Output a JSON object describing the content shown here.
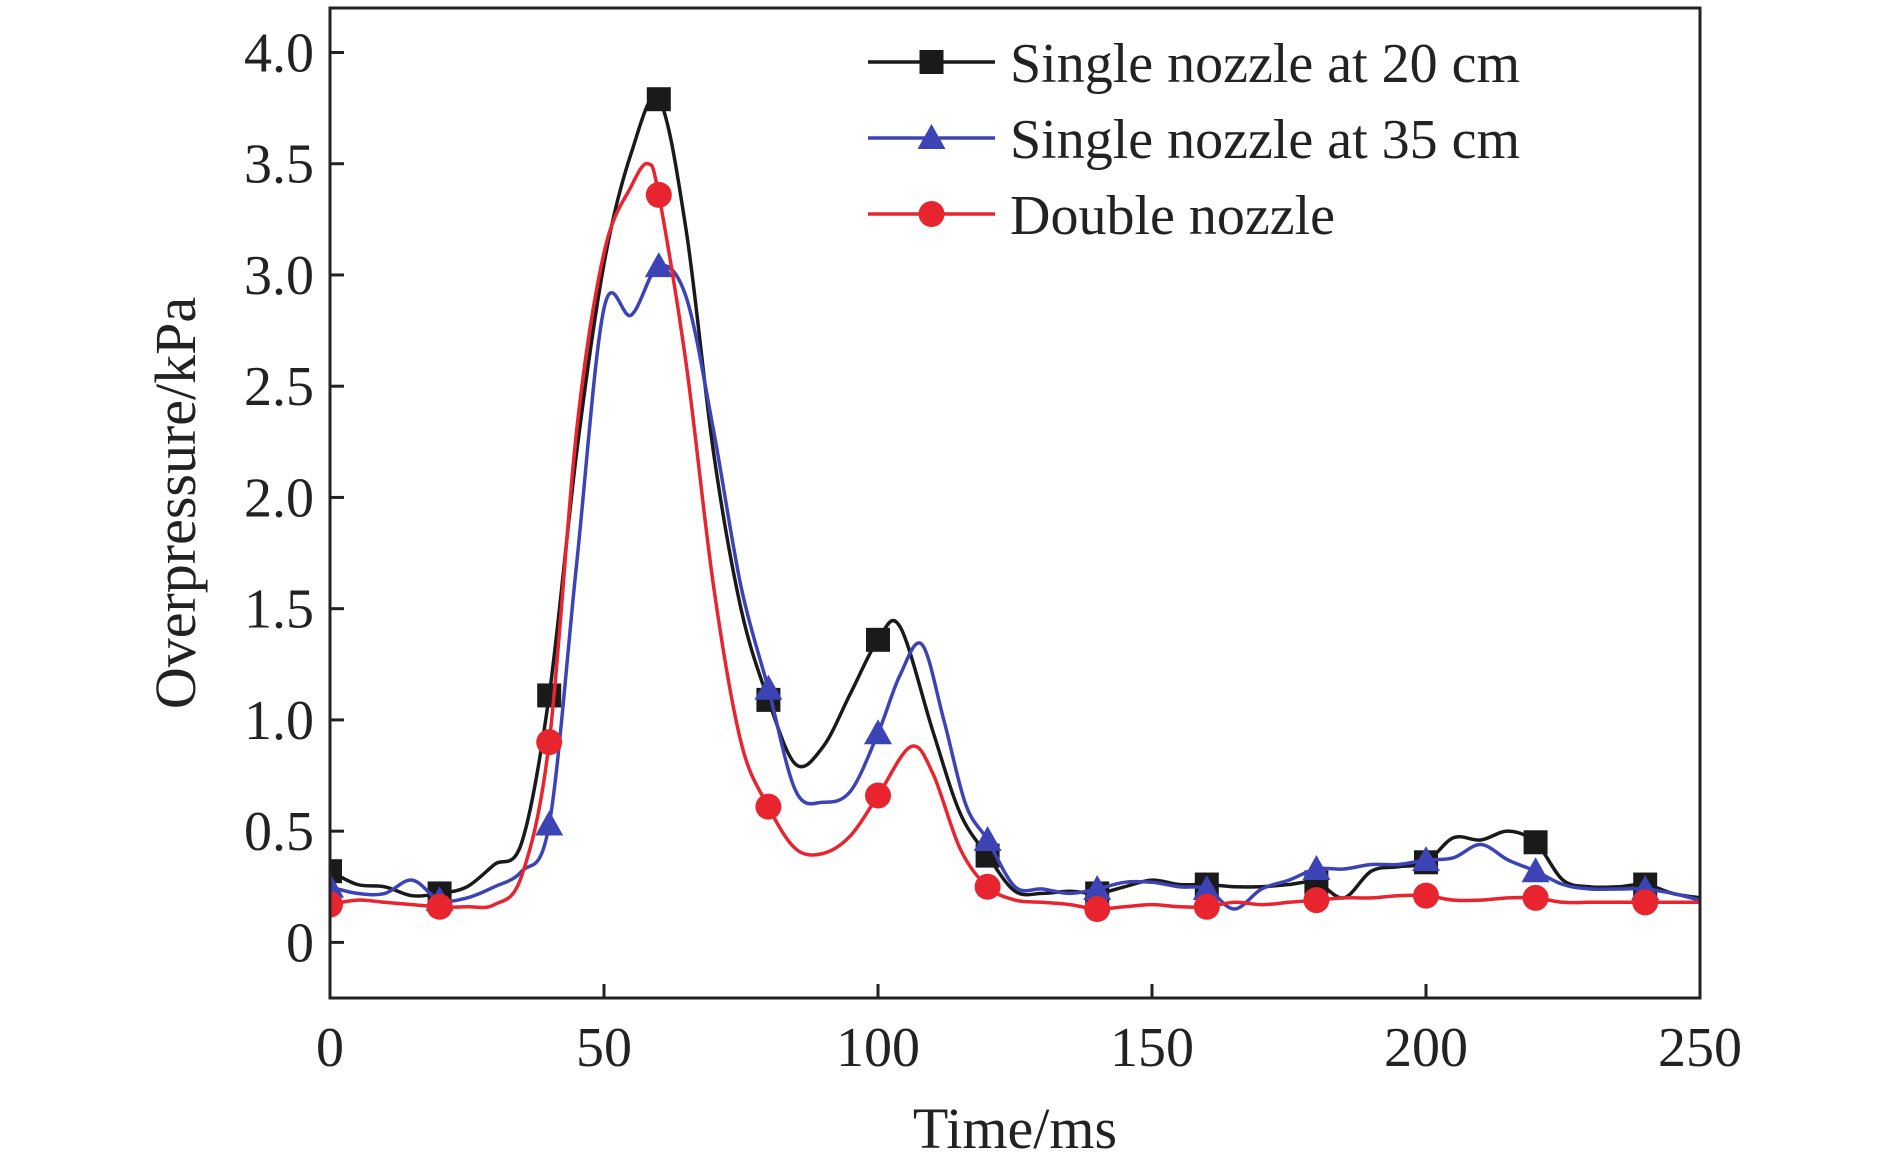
{
  "chart_data": {
    "type": "line",
    "title": "",
    "xlabel": "Time/ms",
    "ylabel": "Overpressure/kPa",
    "xlim": [
      0,
      250
    ],
    "ylim": [
      -0.25,
      4.2
    ],
    "xticks": [
      0,
      50,
      100,
      150,
      200,
      250
    ],
    "yticks": [
      0,
      0.5,
      1.0,
      1.5,
      2.0,
      2.5,
      3.0,
      3.5,
      4.0
    ],
    "xtick_labels": [
      "0",
      "50",
      "100",
      "150",
      "200",
      "250"
    ],
    "ytick_labels": [
      "0",
      "0.5",
      "1.0",
      "1.5",
      "2.0",
      "2.5",
      "3.0",
      "3.5",
      "4.0"
    ],
    "grid": false,
    "legend_position": "top-right",
    "series": [
      {
        "name": "Single nozzle at 20 cm",
        "color": "#1a1a1a",
        "marker": "square",
        "markers": [
          [
            0,
            0.32
          ],
          [
            20,
            0.22
          ],
          [
            40,
            1.11
          ],
          [
            60,
            3.79
          ],
          [
            80,
            1.09
          ],
          [
            100,
            1.36
          ],
          [
            120,
            0.39
          ],
          [
            140,
            0.22
          ],
          [
            160,
            0.26
          ],
          [
            180,
            0.27
          ],
          [
            200,
            0.36
          ],
          [
            220,
            0.45
          ],
          [
            240,
            0.26
          ]
        ],
        "curve": [
          [
            0,
            0.32
          ],
          [
            5,
            0.26
          ],
          [
            10,
            0.25
          ],
          [
            15,
            0.21
          ],
          [
            20,
            0.22
          ],
          [
            25,
            0.25
          ],
          [
            30,
            0.35
          ],
          [
            35,
            0.45
          ],
          [
            40,
            1.11
          ],
          [
            45,
            2.2
          ],
          [
            50,
            3.05
          ],
          [
            55,
            3.55
          ],
          [
            60,
            3.79
          ],
          [
            65,
            3.2
          ],
          [
            70,
            2.2
          ],
          [
            75,
            1.5
          ],
          [
            80,
            1.09
          ],
          [
            85,
            0.8
          ],
          [
            90,
            0.88
          ],
          [
            95,
            1.12
          ],
          [
            100,
            1.36
          ],
          [
            104,
            1.42
          ],
          [
            110,
            0.95
          ],
          [
            115,
            0.58
          ],
          [
            120,
            0.39
          ],
          [
            125,
            0.23
          ],
          [
            130,
            0.22
          ],
          [
            135,
            0.23
          ],
          [
            140,
            0.22
          ],
          [
            145,
            0.25
          ],
          [
            150,
            0.28
          ],
          [
            155,
            0.26
          ],
          [
            160,
            0.26
          ],
          [
            165,
            0.25
          ],
          [
            170,
            0.25
          ],
          [
            175,
            0.26
          ],
          [
            180,
            0.27
          ],
          [
            185,
            0.2
          ],
          [
            190,
            0.32
          ],
          [
            195,
            0.34
          ],
          [
            200,
            0.36
          ],
          [
            205,
            0.47
          ],
          [
            210,
            0.46
          ],
          [
            215,
            0.5
          ],
          [
            220,
            0.45
          ],
          [
            225,
            0.28
          ],
          [
            230,
            0.25
          ],
          [
            235,
            0.25
          ],
          [
            240,
            0.26
          ],
          [
            245,
            0.22
          ],
          [
            250,
            0.2
          ]
        ]
      },
      {
        "name": "Single nozzle at 35 cm",
        "color": "#3b43b5",
        "marker": "triangle",
        "markers": [
          [
            0,
            0.25
          ],
          [
            20,
            0.19
          ],
          [
            40,
            0.53
          ],
          [
            60,
            3.04
          ],
          [
            80,
            1.14
          ],
          [
            100,
            0.94
          ],
          [
            120,
            0.46
          ],
          [
            140,
            0.24
          ],
          [
            160,
            0.24
          ],
          [
            180,
            0.33
          ],
          [
            200,
            0.37
          ],
          [
            220,
            0.32
          ],
          [
            240,
            0.24
          ]
        ],
        "curve": [
          [
            0,
            0.25
          ],
          [
            5,
            0.22
          ],
          [
            10,
            0.22
          ],
          [
            15,
            0.28
          ],
          [
            20,
            0.19
          ],
          [
            25,
            0.2
          ],
          [
            30,
            0.25
          ],
          [
            35,
            0.32
          ],
          [
            40,
            0.53
          ],
          [
            45,
            1.7
          ],
          [
            50,
            2.85
          ],
          [
            55,
            2.82
          ],
          [
            60,
            3.04
          ],
          [
            65,
            2.9
          ],
          [
            70,
            2.3
          ],
          [
            75,
            1.6
          ],
          [
            80,
            1.14
          ],
          [
            85,
            0.68
          ],
          [
            90,
            0.63
          ],
          [
            95,
            0.68
          ],
          [
            100,
            0.94
          ],
          [
            104,
            1.2
          ],
          [
            108,
            1.34
          ],
          [
            112,
            1.0
          ],
          [
            116,
            0.62
          ],
          [
            120,
            0.46
          ],
          [
            125,
            0.25
          ],
          [
            130,
            0.24
          ],
          [
            135,
            0.22
          ],
          [
            140,
            0.24
          ],
          [
            145,
            0.27
          ],
          [
            150,
            0.27
          ],
          [
            155,
            0.25
          ],
          [
            160,
            0.24
          ],
          [
            165,
            0.15
          ],
          [
            170,
            0.24
          ],
          [
            175,
            0.28
          ],
          [
            180,
            0.33
          ],
          [
            185,
            0.33
          ],
          [
            190,
            0.35
          ],
          [
            195,
            0.35
          ],
          [
            200,
            0.37
          ],
          [
            205,
            0.38
          ],
          [
            210,
            0.44
          ],
          [
            215,
            0.37
          ],
          [
            220,
            0.32
          ],
          [
            225,
            0.26
          ],
          [
            230,
            0.24
          ],
          [
            235,
            0.24
          ],
          [
            240,
            0.24
          ],
          [
            245,
            0.22
          ],
          [
            250,
            0.19
          ]
        ]
      },
      {
        "name": "Double nozzle",
        "color": "#e8252f",
        "marker": "circle",
        "markers": [
          [
            0,
            0.17
          ],
          [
            20,
            0.16
          ],
          [
            40,
            0.9
          ],
          [
            60,
            3.36
          ],
          [
            80,
            0.61
          ],
          [
            100,
            0.66
          ],
          [
            120,
            0.25
          ],
          [
            140,
            0.15
          ],
          [
            160,
            0.16
          ],
          [
            180,
            0.19
          ],
          [
            200,
            0.21
          ],
          [
            220,
            0.2
          ],
          [
            240,
            0.18
          ]
        ],
        "curve": [
          [
            0,
            0.17
          ],
          [
            5,
            0.19
          ],
          [
            10,
            0.18
          ],
          [
            15,
            0.17
          ],
          [
            20,
            0.16
          ],
          [
            25,
            0.16
          ],
          [
            30,
            0.17
          ],
          [
            35,
            0.3
          ],
          [
            40,
            0.9
          ],
          [
            45,
            2.3
          ],
          [
            50,
            3.1
          ],
          [
            55,
            3.4
          ],
          [
            58,
            3.5
          ],
          [
            60,
            3.36
          ],
          [
            65,
            2.6
          ],
          [
            70,
            1.6
          ],
          [
            75,
            0.9
          ],
          [
            80,
            0.61
          ],
          [
            85,
            0.42
          ],
          [
            90,
            0.4
          ],
          [
            95,
            0.48
          ],
          [
            100,
            0.66
          ],
          [
            106,
            0.88
          ],
          [
            110,
            0.76
          ],
          [
            115,
            0.42
          ],
          [
            120,
            0.25
          ],
          [
            125,
            0.19
          ],
          [
            130,
            0.18
          ],
          [
            135,
            0.17
          ],
          [
            140,
            0.15
          ],
          [
            145,
            0.16
          ],
          [
            150,
            0.17
          ],
          [
            155,
            0.16
          ],
          [
            160,
            0.16
          ],
          [
            165,
            0.18
          ],
          [
            170,
            0.17
          ],
          [
            175,
            0.18
          ],
          [
            180,
            0.19
          ],
          [
            185,
            0.2
          ],
          [
            190,
            0.2
          ],
          [
            195,
            0.21
          ],
          [
            200,
            0.21
          ],
          [
            205,
            0.19
          ],
          [
            210,
            0.19
          ],
          [
            215,
            0.2
          ],
          [
            220,
            0.2
          ],
          [
            225,
            0.18
          ],
          [
            230,
            0.18
          ],
          [
            235,
            0.18
          ],
          [
            240,
            0.18
          ],
          [
            245,
            0.18
          ],
          [
            250,
            0.18
          ]
        ]
      }
    ]
  }
}
